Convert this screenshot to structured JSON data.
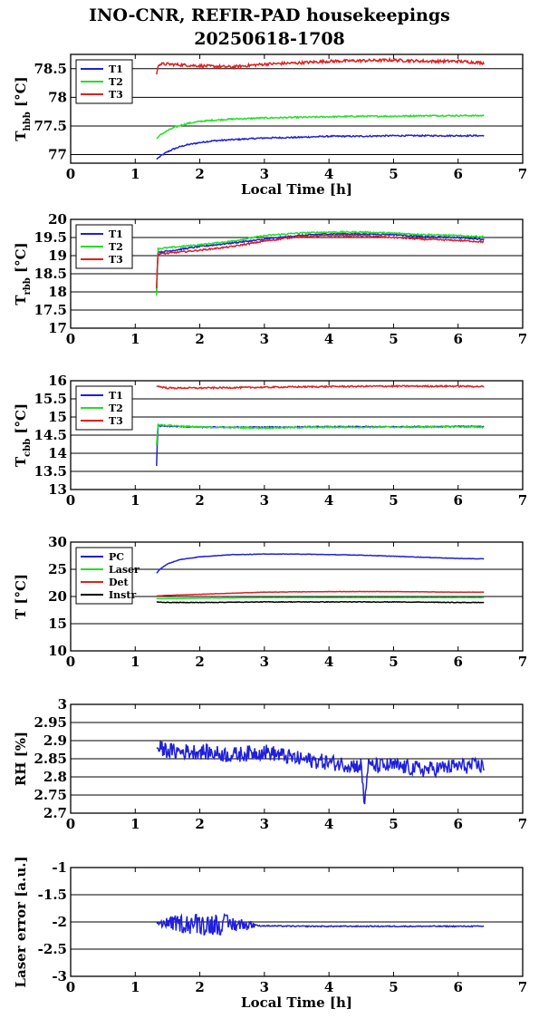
{
  "title": "INO-CNR, REFIR-PAD housekeepings",
  "subtitle": "20250618-1708",
  "colors": {
    "blue": "#1f1fdc",
    "green": "#22e022",
    "red": "#e01f1f",
    "black": "#000000"
  },
  "chart_data": [
    {
      "type": "line",
      "ylabel": {
        "main": "T",
        "sub": "hbb",
        "unit": " [°C]"
      },
      "xlabel": "Local Time [h]",
      "xlim": [
        0,
        7
      ],
      "ylim": [
        76.85,
        78.75
      ],
      "xticks": [
        "0",
        "1",
        "2",
        "3",
        "4",
        "5",
        "6",
        "7"
      ],
      "yticks": [
        {
          "v": 77,
          "label": "77"
        },
        {
          "v": 77.5,
          "label": "77.5"
        },
        {
          "v": 78,
          "label": "78"
        },
        {
          "v": 78.5,
          "label": "78.5"
        }
      ],
      "legend": "top-left",
      "series": [
        {
          "name": "T1",
          "color": "#1f1fdc",
          "noise": 0.012,
          "x": [
            1.33,
            1.4,
            1.5,
            1.6,
            1.7,
            1.8,
            2.0,
            2.2,
            2.5,
            3.0,
            3.5,
            4.0,
            4.5,
            5.0,
            5.5,
            6.0,
            6.4
          ],
          "y": [
            76.92,
            76.98,
            77.05,
            77.1,
            77.14,
            77.17,
            77.21,
            77.24,
            77.26,
            77.29,
            77.3,
            77.32,
            77.32,
            77.33,
            77.33,
            77.33,
            77.33
          ]
        },
        {
          "name": "T2",
          "color": "#22e022",
          "noise": 0.012,
          "x": [
            1.33,
            1.4,
            1.5,
            1.6,
            1.7,
            1.8,
            2.0,
            2.2,
            2.5,
            3.0,
            3.5,
            4.0,
            4.5,
            5.0,
            5.5,
            6.0,
            6.4
          ],
          "y": [
            77.28,
            77.35,
            77.42,
            77.47,
            77.51,
            77.54,
            77.58,
            77.6,
            77.62,
            77.64,
            77.65,
            77.66,
            77.67,
            77.67,
            77.68,
            77.68,
            77.68
          ]
        },
        {
          "name": "T3",
          "color": "#e01f1f",
          "noise": 0.025,
          "x": [
            1.33,
            1.36,
            1.5,
            2.0,
            2.5,
            3.0,
            3.5,
            4.0,
            4.5,
            5.0,
            5.5,
            6.0,
            6.4
          ],
          "y": [
            78.4,
            78.58,
            78.58,
            78.55,
            78.53,
            78.58,
            78.6,
            78.63,
            78.64,
            78.65,
            78.63,
            78.63,
            78.6
          ]
        }
      ]
    },
    {
      "type": "line",
      "ylabel": {
        "main": "T",
        "sub": "rbb",
        "unit": " [°C]"
      },
      "xlabel": "",
      "xlim": [
        0,
        7
      ],
      "ylim": [
        17,
        20
      ],
      "xticks": [
        "0",
        "1",
        "2",
        "3",
        "4",
        "5",
        "6",
        "7"
      ],
      "yticks": [
        {
          "v": 17,
          "label": "17"
        },
        {
          "v": 17.5,
          "label": "17.5"
        },
        {
          "v": 18,
          "label": "18"
        },
        {
          "v": 18.5,
          "label": "18.5"
        },
        {
          "v": 19,
          "label": "19"
        },
        {
          "v": 19.5,
          "label": "19.5"
        },
        {
          "v": 20,
          "label": "20"
        }
      ],
      "legend": "top-left",
      "series": [
        {
          "name": "T1",
          "color": "#1f1fdc",
          "noise": 0.02,
          "x": [
            1.33,
            1.35,
            1.4,
            2.0,
            2.5,
            3.0,
            3.5,
            4.0,
            4.5,
            5.0,
            5.5,
            6.0,
            6.4
          ],
          "y": [
            18.0,
            19.1,
            19.1,
            19.25,
            19.35,
            19.45,
            19.55,
            19.6,
            19.6,
            19.58,
            19.52,
            19.5,
            19.45
          ]
        },
        {
          "name": "T2",
          "color": "#22e022",
          "noise": 0.02,
          "x": [
            1.33,
            1.35,
            1.4,
            2.0,
            2.5,
            3.0,
            3.5,
            4.0,
            4.5,
            5.0,
            5.5,
            6.0,
            6.4
          ],
          "y": [
            17.9,
            19.2,
            19.2,
            19.3,
            19.4,
            19.55,
            19.62,
            19.65,
            19.65,
            19.62,
            19.58,
            19.55,
            19.52
          ]
        },
        {
          "name": "T3",
          "color": "#e01f1f",
          "noise": 0.02,
          "x": [
            1.33,
            1.35,
            1.4,
            2.0,
            2.5,
            3.0,
            3.5,
            4.0,
            4.5,
            5.0,
            5.5,
            6.0,
            6.4
          ],
          "y": [
            18.1,
            19.05,
            19.05,
            19.15,
            19.25,
            19.4,
            19.52,
            19.55,
            19.55,
            19.5,
            19.45,
            19.42,
            19.38
          ]
        }
      ]
    },
    {
      "type": "line",
      "ylabel": {
        "main": "T",
        "sub": "cbb",
        "unit": " [°C]"
      },
      "xlabel": "",
      "xlim": [
        0,
        7
      ],
      "ylim": [
        13,
        16
      ],
      "xticks": [
        "0",
        "1",
        "2",
        "3",
        "4",
        "5",
        "6",
        "7"
      ],
      "yticks": [
        {
          "v": 13,
          "label": "13"
        },
        {
          "v": 13.5,
          "label": "13.5"
        },
        {
          "v": 14,
          "label": "14"
        },
        {
          "v": 14.5,
          "label": "14.5"
        },
        {
          "v": 15,
          "label": "15"
        },
        {
          "v": 15.5,
          "label": "15.5"
        },
        {
          "v": 16,
          "label": "16"
        }
      ],
      "legend": "top-left",
      "series": [
        {
          "name": "T1",
          "color": "#1f1fdc",
          "noise": 0.015,
          "x": [
            1.33,
            1.35,
            1.4,
            2.0,
            3.0,
            4.0,
            5.0,
            6.0,
            6.4
          ],
          "y": [
            13.65,
            14.75,
            14.75,
            14.72,
            14.72,
            14.73,
            14.73,
            14.74,
            14.74
          ]
        },
        {
          "name": "T2",
          "color": "#22e022",
          "noise": 0.02,
          "x": [
            1.33,
            1.35,
            1.4,
            2.0,
            3.0,
            4.0,
            5.0,
            6.0,
            6.4
          ],
          "y": [
            14.2,
            14.8,
            14.78,
            14.72,
            14.7,
            14.72,
            14.72,
            14.73,
            14.72
          ]
        },
        {
          "name": "T3",
          "color": "#e01f1f",
          "noise": 0.02,
          "x": [
            1.33,
            1.5,
            2.0,
            3.0,
            4.0,
            5.0,
            6.0,
            6.4
          ],
          "y": [
            15.85,
            15.8,
            15.8,
            15.82,
            15.84,
            15.85,
            15.85,
            15.84
          ]
        }
      ]
    },
    {
      "type": "line",
      "ylabel": {
        "main": "T",
        "sub": "",
        "unit": " [°C]"
      },
      "xlabel": "",
      "xlim": [
        0,
        7
      ],
      "ylim": [
        10,
        30
      ],
      "xticks": [
        "0",
        "1",
        "2",
        "3",
        "4",
        "5",
        "6",
        "7"
      ],
      "yticks": [
        {
          "v": 10,
          "label": "10"
        },
        {
          "v": 15,
          "label": "15"
        },
        {
          "v": 20,
          "label": "20"
        },
        {
          "v": 25,
          "label": "25"
        },
        {
          "v": 30,
          "label": "30"
        }
      ],
      "legend": "top-left",
      "series": [
        {
          "name": "PC",
          "color": "#1f1fdc",
          "noise": 0.04,
          "x": [
            1.33,
            1.4,
            1.5,
            1.7,
            2.0,
            2.5,
            3.0,
            3.5,
            4.0,
            4.5,
            5.0,
            5.5,
            6.0,
            6.4
          ],
          "y": [
            24.3,
            25.2,
            26.0,
            26.8,
            27.3,
            27.7,
            27.8,
            27.8,
            27.7,
            27.6,
            27.4,
            27.2,
            27.0,
            26.9
          ]
        },
        {
          "name": "Laser",
          "color": "#22e022",
          "noise": 0.03,
          "x": [
            1.33,
            1.5,
            2.0,
            3.0,
            4.0,
            5.0,
            6.0,
            6.4
          ],
          "y": [
            19.6,
            19.6,
            19.7,
            19.8,
            19.8,
            19.8,
            19.8,
            19.8
          ]
        },
        {
          "name": "Det",
          "color": "#e01f1f",
          "noise": 0.03,
          "x": [
            1.33,
            1.5,
            2.0,
            3.0,
            4.0,
            5.0,
            6.0,
            6.4
          ],
          "y": [
            20.1,
            20.2,
            20.4,
            20.8,
            20.9,
            20.9,
            20.8,
            20.8
          ]
        },
        {
          "name": "Instr",
          "color": "#000000",
          "noise": 0.05,
          "x": [
            1.33,
            1.5,
            2.0,
            3.0,
            4.0,
            5.0,
            6.0,
            6.4
          ],
          "y": [
            19.0,
            18.9,
            18.9,
            19.0,
            19.0,
            19.0,
            18.9,
            18.9
          ]
        }
      ]
    },
    {
      "type": "line",
      "ylabel": {
        "main": "RH [%]",
        "sub": "",
        "unit": ""
      },
      "xlabel": "",
      "xlim": [
        0,
        7
      ],
      "ylim": [
        2.7,
        3.0
      ],
      "xticks": [
        "0",
        "1",
        "2",
        "3",
        "4",
        "5",
        "6",
        "7"
      ],
      "yticks": [
        {
          "v": 2.7,
          "label": "2.7"
        },
        {
          "v": 2.75,
          "label": "2.75"
        },
        {
          "v": 2.8,
          "label": "2.8"
        },
        {
          "v": 2.85,
          "label": "2.85"
        },
        {
          "v": 2.9,
          "label": "2.9"
        },
        {
          "v": 2.95,
          "label": "2.95"
        },
        {
          "v": 3,
          "label": "3"
        }
      ],
      "legend": "none",
      "series": [
        {
          "name": "",
          "color": "#1f1fdc",
          "noise": 0.022,
          "x": [
            1.33,
            1.6,
            2.0,
            2.5,
            3.0,
            3.5,
            4.0,
            4.5,
            4.55,
            4.6,
            5.0,
            5.5,
            6.0,
            6.4
          ],
          "y": [
            2.88,
            2.87,
            2.87,
            2.86,
            2.87,
            2.85,
            2.84,
            2.83,
            2.72,
            2.83,
            2.83,
            2.82,
            2.83,
            2.83
          ]
        }
      ]
    },
    {
      "type": "line",
      "ylabel": {
        "main": "Laser error [a.u.]",
        "sub": "",
        "unit": ""
      },
      "xlabel": "Local Time [h]",
      "xlim": [
        0,
        7
      ],
      "ylim": [
        -3,
        -1
      ],
      "xticks": [
        "0",
        "1",
        "2",
        "3",
        "4",
        "5",
        "6",
        "7"
      ],
      "yticks": [
        {
          "v": -3,
          "label": "-3"
        },
        {
          "v": -2.5,
          "label": "-2.5"
        },
        {
          "v": -2,
          "label": "-2"
        },
        {
          "v": -1.5,
          "label": "-1.5"
        },
        {
          "v": -1,
          "label": "-1"
        }
      ],
      "legend": "none",
      "series": [
        {
          "name": "",
          "color": "#1f1fdc",
          "noise": 0.01,
          "burst": [
            1.35,
            2.85,
            0.42
          ],
          "x": [
            1.33,
            2.85,
            2.9,
            3.5,
            4.0,
            5.0,
            6.0,
            6.4
          ],
          "y": [
            -2.02,
            -2.05,
            -2.07,
            -2.08,
            -2.08,
            -2.08,
            -2.08,
            -2.08
          ]
        }
      ]
    }
  ]
}
